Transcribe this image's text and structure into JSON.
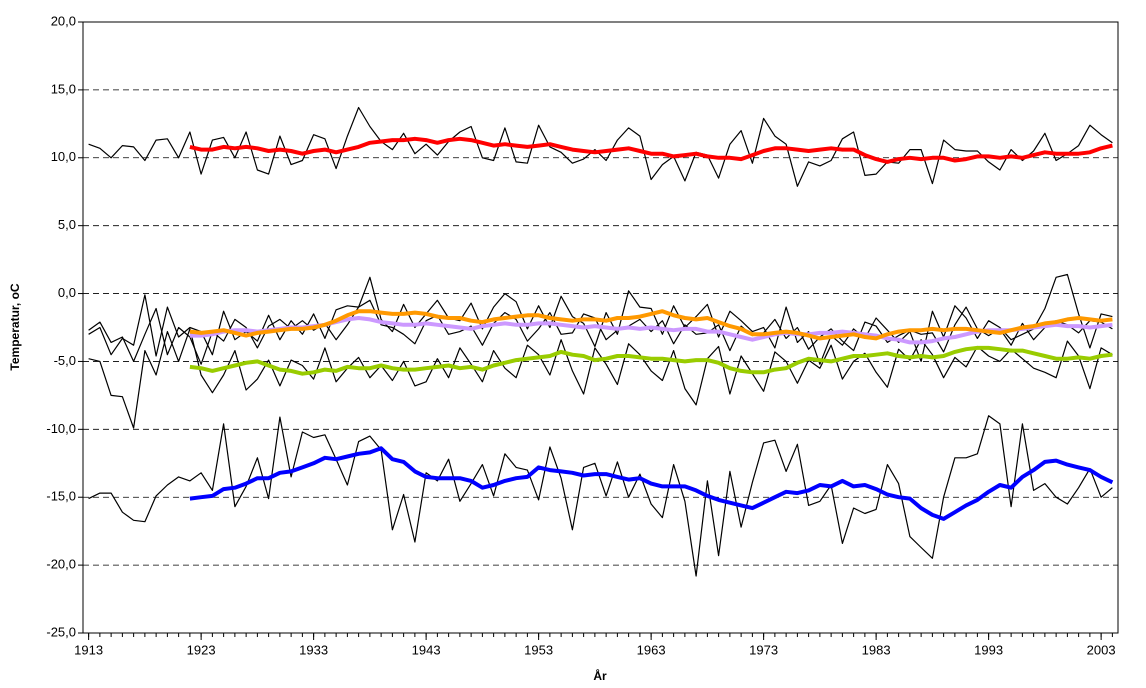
{
  "chart_data": {
    "type": "line",
    "y_label": "Temperatur, oC",
    "x_label": "År",
    "x": [
      1913,
      1914,
      1915,
      1916,
      1917,
      1918,
      1919,
      1920,
      1921,
      1922,
      1923,
      1924,
      1925,
      1926,
      1927,
      1928,
      1929,
      1930,
      1931,
      1932,
      1933,
      1934,
      1935,
      1936,
      1937,
      1938,
      1939,
      1940,
      1941,
      1942,
      1943,
      1944,
      1945,
      1946,
      1947,
      1948,
      1949,
      1950,
      1951,
      1952,
      1953,
      1954,
      1955,
      1956,
      1957,
      1958,
      1959,
      1960,
      1961,
      1962,
      1963,
      1964,
      1965,
      1966,
      1967,
      1968,
      1969,
      1970,
      1971,
      1972,
      1973,
      1974,
      1975,
      1976,
      1977,
      1978,
      1979,
      1980,
      1981,
      1982,
      1983,
      1984,
      1985,
      1986,
      1987,
      1988,
      1989,
      1990,
      1991,
      1992,
      1993,
      1994,
      1995,
      1996,
      1997,
      1998,
      1999,
      2000,
      2001,
      2002,
      2003,
      2004
    ],
    "xlim": [
      1912.5,
      2004.5
    ],
    "xticks": [
      1913,
      1923,
      1933,
      1943,
      1953,
      1963,
      1973,
      1983,
      1993,
      2003
    ],
    "ylim": [
      -25,
      20
    ],
    "yticks": [
      {
        "value": -25,
        "label": "-25,0"
      },
      {
        "value": -20,
        "label": "-20,0"
      },
      {
        "value": -15,
        "label": "-15,0"
      },
      {
        "value": -10,
        "label": "-10,0"
      },
      {
        "value": -5,
        "label": "-5,0"
      },
      {
        "value": 0,
        "label": "0,0"
      },
      {
        "value": 5,
        "label": "5,0"
      },
      {
        "value": 10,
        "label": "10,0"
      },
      {
        "value": 15,
        "label": "15,0"
      },
      {
        "value": 20,
        "label": "20,0"
      }
    ],
    "grid": true,
    "series": [
      {
        "color": "#000000",
        "values": [
          11.0,
          10.7,
          10.0,
          10.9,
          10.8,
          9.8,
          11.3,
          11.4,
          10.0,
          11.9,
          8.8,
          11.3,
          11.5,
          10.0,
          11.9,
          9.1,
          8.8,
          11.6,
          9.5,
          9.8,
          11.7,
          11.4,
          9.2,
          11.6,
          13.7,
          12.3,
          11.2,
          10.6,
          11.8,
          10.3,
          11.0,
          10.2,
          11.2,
          11.9,
          12.3,
          10.0,
          9.8,
          12.2,
          9.7,
          9.6,
          12.4,
          10.8,
          10.4,
          9.6,
          9.9,
          10.6,
          9.8,
          11.3,
          12.2,
          11.6,
          8.4,
          9.5,
          10.1,
          8.3,
          10.4,
          10.2,
          8.5,
          11.0,
          12.0,
          9.6,
          12.9,
          11.6,
          11.0,
          7.9,
          9.7,
          9.4,
          9.8,
          11.4,
          11.9,
          8.7,
          8.8,
          9.7,
          9.6,
          10.6,
          10.6,
          8.1,
          11.3,
          10.6,
          10.5,
          10.5,
          9.7,
          9.1,
          10.6,
          9.8,
          10.5,
          11.8,
          9.8,
          10.3,
          10.9,
          12.4,
          11.7,
          11.1
        ]
      },
      {
        "color": "#000000",
        "values": [
          -3.0,
          -2.5,
          -4.5,
          -3.3,
          -3.8,
          -0.1,
          -4.6,
          -1.0,
          -3.2,
          -2.5,
          -2.8,
          -4.5,
          -1.3,
          -3.4,
          -2.8,
          -3.5,
          -1.6,
          -3.4,
          -2.0,
          -3.0,
          -1.5,
          -3.3,
          -1.2,
          -0.9,
          -1.0,
          1.2,
          -1.9,
          -2.8,
          -0.8,
          -2.5,
          -1.5,
          -0.5,
          -1.8,
          -2.0,
          -0.7,
          -2.6,
          -1.0,
          0.0,
          -0.6,
          -2.6,
          -0.9,
          -2.5,
          -0.2,
          -1.7,
          -2.2,
          -3.9,
          -1.4,
          -3.0,
          0.2,
          -1.0,
          -1.1,
          -3.0,
          -0.9,
          -2.5,
          -1.7,
          -0.8,
          -3.2,
          -1.3,
          -2.0,
          -2.8,
          -2.5,
          -4.0,
          -1.0,
          -3.6,
          -2.8,
          -5.2,
          -3.1,
          -3.8,
          -2.6,
          -3.3,
          -1.8,
          -2.7,
          -3.6,
          -2.8,
          -5.0,
          -1.3,
          -3.2,
          -0.9,
          -1.8,
          -3.3,
          -2.0,
          -2.5,
          -3.4,
          -3.0,
          -2.6,
          -1.1,
          1.2,
          1.4,
          -1.5,
          -4.0,
          -1.5,
          -1.7
        ]
      },
      {
        "color": "#000000",
        "values": [
          -2.7,
          -2.1,
          -3.6,
          -3.2,
          -5.0,
          -3.0,
          -1.1,
          -4.5,
          -2.5,
          -3.2,
          -5.2,
          -2.8,
          -3.5,
          -1.9,
          -2.5,
          -4.0,
          -2.4,
          -1.9,
          -2.6,
          -2.0,
          -2.7,
          -2.2,
          -3.4,
          -2.3,
          -1.0,
          -0.5,
          -2.3,
          -2.5,
          -3.0,
          -3.7,
          -2.0,
          -1.6,
          -3.0,
          -2.8,
          -2.4,
          -3.8,
          -2.2,
          -1.4,
          -1.9,
          -3.5,
          -2.6,
          -1.4,
          -3.0,
          -2.9,
          -1.5,
          -1.8,
          -3.4,
          -2.7,
          -2.4,
          -1.9,
          -2.8,
          -2.0,
          -3.7,
          -2.3,
          -3.0,
          -2.9,
          -2.3,
          -4.2,
          -2.4,
          -3.1,
          -2.9,
          -1.9,
          -3.3,
          -2.5,
          -4.1,
          -3.2,
          -2.6,
          -3.5,
          -4.2,
          -2.1,
          -2.4,
          -3.6,
          -3.1,
          -2.7,
          -3.0,
          -2.9,
          -4.3,
          -2.3,
          -1.0,
          -2.6,
          -3.1,
          -2.6,
          -3.8,
          -2.2,
          -3.4,
          -2.5,
          -2.0,
          -2.3,
          -2.9,
          -2.0,
          -2.1,
          -2.6
        ]
      },
      {
        "color": "#000000",
        "values": [
          -4.8,
          -5.0,
          -7.5,
          -7.6,
          -9.9,
          -4.2,
          -6.0,
          -2.8,
          -5.0,
          -2.6,
          -6.0,
          -7.3,
          -6.0,
          -4.2,
          -7.1,
          -6.3,
          -4.9,
          -6.8,
          -4.9,
          -5.3,
          -6.3,
          -4.0,
          -6.5,
          -5.5,
          -4.7,
          -6.2,
          -5.3,
          -6.4,
          -5.0,
          -6.8,
          -6.5,
          -4.8,
          -6.2,
          -4.0,
          -5.2,
          -6.5,
          -4.2,
          -5.5,
          -6.2,
          -3.8,
          -4.5,
          -6.0,
          -3.4,
          -5.7,
          -7.4,
          -4.0,
          -5.2,
          -6.7,
          -3.7,
          -4.5,
          -5.7,
          -6.4,
          -4.2,
          -7.0,
          -8.2,
          -4.8,
          -3.9,
          -7.4,
          -4.6,
          -5.9,
          -7.2,
          -4.3,
          -5.0,
          -6.6,
          -4.9,
          -5.5,
          -3.8,
          -6.3,
          -5.0,
          -4.4,
          -5.8,
          -6.9,
          -4.1,
          -4.9,
          -3.4,
          -4.5,
          -6.2,
          -4.7,
          -5.4,
          -3.9,
          -4.6,
          -5.0,
          -4.1,
          -4.8,
          -5.5,
          -5.8,
          -6.2,
          -3.5,
          -4.6,
          -7.0,
          -4.0,
          -4.5
        ]
      },
      {
        "color": "#000000",
        "values": [
          -15.1,
          -14.7,
          -14.7,
          -16.1,
          -16.7,
          -16.8,
          -14.9,
          -14.1,
          -13.5,
          -13.8,
          -13.2,
          -14.5,
          -9.6,
          -15.7,
          -14.2,
          -12.1,
          -15.1,
          -9.1,
          -13.5,
          -10.2,
          -10.6,
          -10.4,
          -12.2,
          -14.1,
          -10.9,
          -10.5,
          -11.5,
          -17.4,
          -14.8,
          -18.3,
          -13.2,
          -13.8,
          -12.2,
          -15.3,
          -14.0,
          -12.6,
          -14.9,
          -11.8,
          -12.8,
          -13.0,
          -15.2,
          -11.3,
          -13.6,
          -17.4,
          -12.8,
          -12.5,
          -14.9,
          -12.4,
          -15.0,
          -13.3,
          -15.5,
          -16.5,
          -12.6,
          -15.3,
          -20.8,
          -13.8,
          -19.3,
          -13.1,
          -17.2,
          -13.9,
          -11.0,
          -10.8,
          -13.1,
          -11.1,
          -15.6,
          -15.3,
          -14.1,
          -18.4,
          -15.8,
          -16.2,
          -15.9,
          -12.6,
          -14.0,
          -17.9,
          -18.7,
          -19.5,
          -15.0,
          -12.1,
          -12.1,
          -11.8,
          -9.0,
          -9.6,
          -15.7,
          -9.6,
          -14.5,
          -14.0,
          -15.0,
          -15.5,
          -14.3,
          -12.9,
          -15.0,
          -14.3
        ]
      },
      {
        "color": "#ff0000",
        "values": [
          null,
          null,
          null,
          null,
          null,
          null,
          null,
          null,
          null,
          10.8,
          10.6,
          10.6,
          10.8,
          10.7,
          10.8,
          10.7,
          10.5,
          10.6,
          10.5,
          10.3,
          10.5,
          10.6,
          10.4,
          10.6,
          10.8,
          11.1,
          11.2,
          11.3,
          11.3,
          11.4,
          11.3,
          11.1,
          11.3,
          11.4,
          11.3,
          11.1,
          10.9,
          11.0,
          10.9,
          10.8,
          10.9,
          11.0,
          10.8,
          10.6,
          10.5,
          10.4,
          10.5,
          10.6,
          10.7,
          10.5,
          10.3,
          10.3,
          10.1,
          10.2,
          10.3,
          10.1,
          10.0,
          10.0,
          9.9,
          10.2,
          10.5,
          10.7,
          10.7,
          10.6,
          10.5,
          10.6,
          10.7,
          10.6,
          10.6,
          10.2,
          9.9,
          9.7,
          9.9,
          10.0,
          9.9,
          10.0,
          10.0,
          9.8,
          9.9,
          10.1,
          10.1,
          10.0,
          10.1,
          10.0,
          10.2,
          10.4,
          10.3,
          10.3,
          10.3,
          10.4,
          10.7,
          10.9
        ]
      },
      {
        "color": "#cc99ff",
        "values": [
          null,
          null,
          null,
          null,
          null,
          null,
          null,
          null,
          null,
          -3.1,
          -3.1,
          -3.0,
          -2.8,
          -2.7,
          -2.7,
          -2.8,
          -2.7,
          -2.6,
          -2.5,
          -2.5,
          -2.4,
          -2.3,
          -2.1,
          -1.9,
          -1.8,
          -1.9,
          -2.1,
          -2.2,
          -2.3,
          -2.3,
          -2.2,
          -2.3,
          -2.4,
          -2.5,
          -2.6,
          -2.4,
          -2.3,
          -2.2,
          -2.3,
          -2.3,
          -2.2,
          -2.2,
          -2.3,
          -2.4,
          -2.5,
          -2.4,
          -2.5,
          -2.6,
          -2.5,
          -2.6,
          -2.5,
          -2.6,
          -2.7,
          -2.6,
          -2.6,
          -2.8,
          -2.8,
          -3.0,
          -3.2,
          -3.4,
          -3.2,
          -3.0,
          -2.9,
          -3.0,
          -3.0,
          -2.9,
          -2.9,
          -2.8,
          -2.9,
          -3.0,
          -3.1,
          -3.3,
          -3.4,
          -3.6,
          -3.6,
          -3.5,
          -3.3,
          -3.2,
          -3.0,
          -2.8,
          -2.7,
          -2.7,
          -2.7,
          -2.6,
          -2.5,
          -2.4,
          -2.3,
          -2.4,
          -2.4,
          -2.5,
          -2.4,
          -2.3
        ]
      },
      {
        "color": "#ff9900",
        "values": [
          null,
          null,
          null,
          null,
          null,
          null,
          null,
          null,
          null,
          -2.8,
          -2.9,
          -2.8,
          -2.7,
          -2.9,
          -3.1,
          -2.9,
          -2.8,
          -2.7,
          -2.6,
          -2.6,
          -2.5,
          -2.3,
          -2.0,
          -1.6,
          -1.3,
          -1.3,
          -1.4,
          -1.5,
          -1.5,
          -1.4,
          -1.5,
          -1.7,
          -1.8,
          -1.8,
          -2.0,
          -2.1,
          -1.9,
          -1.8,
          -1.7,
          -1.6,
          -1.6,
          -1.8,
          -1.9,
          -2.0,
          -1.9,
          -1.9,
          -2.0,
          -1.8,
          -1.8,
          -1.7,
          -1.5,
          -1.3,
          -1.6,
          -1.8,
          -1.9,
          -1.8,
          -2.1,
          -2.4,
          -2.6,
          -3.0,
          -3.0,
          -2.9,
          -2.8,
          -2.9,
          -3.1,
          -3.3,
          -3.2,
          -3.1,
          -3.0,
          -3.2,
          -3.3,
          -3.0,
          -2.8,
          -2.7,
          -2.7,
          -2.6,
          -2.7,
          -2.6,
          -2.6,
          -2.7,
          -2.8,
          -2.9,
          -2.7,
          -2.5,
          -2.4,
          -2.2,
          -2.1,
          -1.9,
          -1.8,
          -1.9,
          -2.0,
          -1.9
        ]
      },
      {
        "color": "#99cc00",
        "values": [
          null,
          null,
          null,
          null,
          null,
          null,
          null,
          null,
          null,
          -5.4,
          -5.5,
          -5.7,
          -5.5,
          -5.3,
          -5.1,
          -5.0,
          -5.3,
          -5.6,
          -5.7,
          -5.9,
          -5.8,
          -5.6,
          -5.7,
          -5.4,
          -5.5,
          -5.5,
          -5.3,
          -5.5,
          -5.6,
          -5.6,
          -5.5,
          -5.4,
          -5.3,
          -5.5,
          -5.4,
          -5.6,
          -5.3,
          -5.1,
          -4.9,
          -4.8,
          -4.7,
          -4.6,
          -4.3,
          -4.5,
          -4.6,
          -4.9,
          -4.8,
          -4.6,
          -4.6,
          -4.7,
          -4.8,
          -4.8,
          -4.9,
          -5.0,
          -4.9,
          -4.9,
          -5.1,
          -5.5,
          -5.7,
          -5.8,
          -5.8,
          -5.6,
          -5.5,
          -5.1,
          -4.8,
          -4.9,
          -5.0,
          -4.8,
          -4.6,
          -4.6,
          -4.5,
          -4.4,
          -4.6,
          -4.7,
          -4.6,
          -4.7,
          -4.6,
          -4.3,
          -4.1,
          -4.0,
          -4.0,
          -4.1,
          -4.2,
          -4.2,
          -4.4,
          -4.6,
          -4.8,
          -4.8,
          -4.7,
          -4.8,
          -4.6,
          -4.5
        ]
      },
      {
        "color": "#0000ff",
        "values": [
          null,
          null,
          null,
          null,
          null,
          null,
          null,
          null,
          null,
          -15.1,
          -15.0,
          -14.9,
          -14.4,
          -14.3,
          -14.0,
          -13.6,
          -13.6,
          -13.2,
          -13.1,
          -12.8,
          -12.5,
          -12.1,
          -12.2,
          -12.0,
          -11.8,
          -11.7,
          -11.4,
          -12.2,
          -12.4,
          -13.1,
          -13.5,
          -13.6,
          -13.6,
          -13.6,
          -13.8,
          -14.3,
          -14.1,
          -13.8,
          -13.6,
          -13.5,
          -12.8,
          -13.0,
          -13.1,
          -13.2,
          -13.4,
          -13.3,
          -13.3,
          -13.5,
          -13.7,
          -13.6,
          -14.0,
          -14.2,
          -14.2,
          -14.2,
          -14.5,
          -14.9,
          -15.2,
          -15.4,
          -15.6,
          -15.8,
          -15.4,
          -15.0,
          -14.6,
          -14.7,
          -14.5,
          -14.1,
          -14.2,
          -13.8,
          -14.2,
          -14.1,
          -14.4,
          -14.8,
          -15.0,
          -15.1,
          -15.8,
          -16.3,
          -16.6,
          -16.1,
          -15.6,
          -15.2,
          -14.6,
          -14.1,
          -14.3,
          -13.5,
          -13.0,
          -12.4,
          -12.3,
          -12.6,
          -12.8,
          -13.0,
          -13.5,
          -13.9
        ]
      }
    ]
  }
}
